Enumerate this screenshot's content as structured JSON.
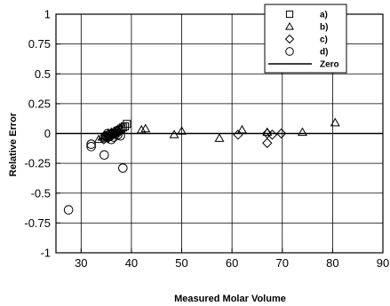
{
  "chart_data": {
    "type": "scatter",
    "title": "",
    "xlabel": "Measured Molar Volume",
    "ylabel": "Relative Error",
    "xlim": [
      25,
      90
    ],
    "ylim": [
      -1,
      1
    ],
    "xticks": [
      30,
      40,
      50,
      60,
      70,
      80,
      90
    ],
    "yticks": [
      -1,
      -0.75,
      -0.5,
      -0.25,
      0,
      0.25,
      0.5,
      0.75,
      1
    ],
    "xtick_labels": [
      "30",
      "40",
      "50",
      "60",
      "70",
      "80",
      "90"
    ],
    "ytick_labels": [
      "-1",
      "-0.75",
      "-0.5",
      "-0.25",
      "0",
      "0.25",
      "0.5",
      "0.75",
      "1"
    ],
    "grid": true,
    "legend_position": "top-right",
    "series": [
      {
        "name": "a)",
        "marker": "square",
        "points": [
          [
            34.8,
            -0.04
          ],
          [
            35.2,
            -0.03
          ],
          [
            35.6,
            -0.02
          ],
          [
            36.0,
            -0.01
          ],
          [
            36.4,
            0.0
          ],
          [
            36.8,
            0.01
          ],
          [
            37.2,
            0.02
          ],
          [
            37.6,
            0.03
          ],
          [
            38.0,
            0.04
          ],
          [
            38.3,
            0.05
          ],
          [
            38.7,
            0.06
          ],
          [
            39.1,
            0.08
          ]
        ]
      },
      {
        "name": "b)",
        "marker": "triangle",
        "points": [
          [
            33.5,
            -0.05
          ],
          [
            34.2,
            -0.03
          ],
          [
            34.8,
            -0.02
          ],
          [
            35.4,
            0.0
          ],
          [
            36.0,
            0.01
          ],
          [
            36.6,
            0.02
          ],
          [
            37.2,
            0.03
          ],
          [
            37.8,
            0.04
          ],
          [
            42.0,
            0.03
          ],
          [
            42.8,
            0.04
          ],
          [
            48.5,
            -0.01
          ],
          [
            50.0,
            0.02
          ],
          [
            57.5,
            -0.04
          ],
          [
            62.0,
            0.03
          ],
          [
            67.0,
            0.01
          ],
          [
            74.0,
            0.01
          ],
          [
            80.5,
            0.09
          ]
        ]
      },
      {
        "name": "c)",
        "marker": "diamond",
        "points": [
          [
            34.5,
            -0.05
          ],
          [
            35.3,
            -0.04
          ],
          [
            36.0,
            -0.02
          ],
          [
            36.8,
            0.0
          ],
          [
            37.5,
            0.01
          ],
          [
            61.2,
            -0.01
          ],
          [
            67.0,
            -0.08
          ],
          [
            67.0,
            0.0
          ],
          [
            68.0,
            -0.01
          ],
          [
            69.8,
            0.0
          ]
        ]
      },
      {
        "name": "d)",
        "marker": "circle",
        "points": [
          [
            27.5,
            -0.64
          ],
          [
            32.0,
            -0.09
          ],
          [
            32.0,
            -0.11
          ],
          [
            34.6,
            -0.18
          ],
          [
            35.0,
            -0.02
          ],
          [
            35.3,
            0.0
          ],
          [
            36.0,
            -0.05
          ],
          [
            36.5,
            -0.03
          ],
          [
            37.3,
            -0.01
          ],
          [
            37.8,
            -0.02
          ],
          [
            38.3,
            -0.29
          ]
        ]
      },
      {
        "name": "Zero",
        "marker": "line",
        "points": [
          [
            25,
            0
          ],
          [
            90,
            0
          ]
        ]
      }
    ]
  }
}
